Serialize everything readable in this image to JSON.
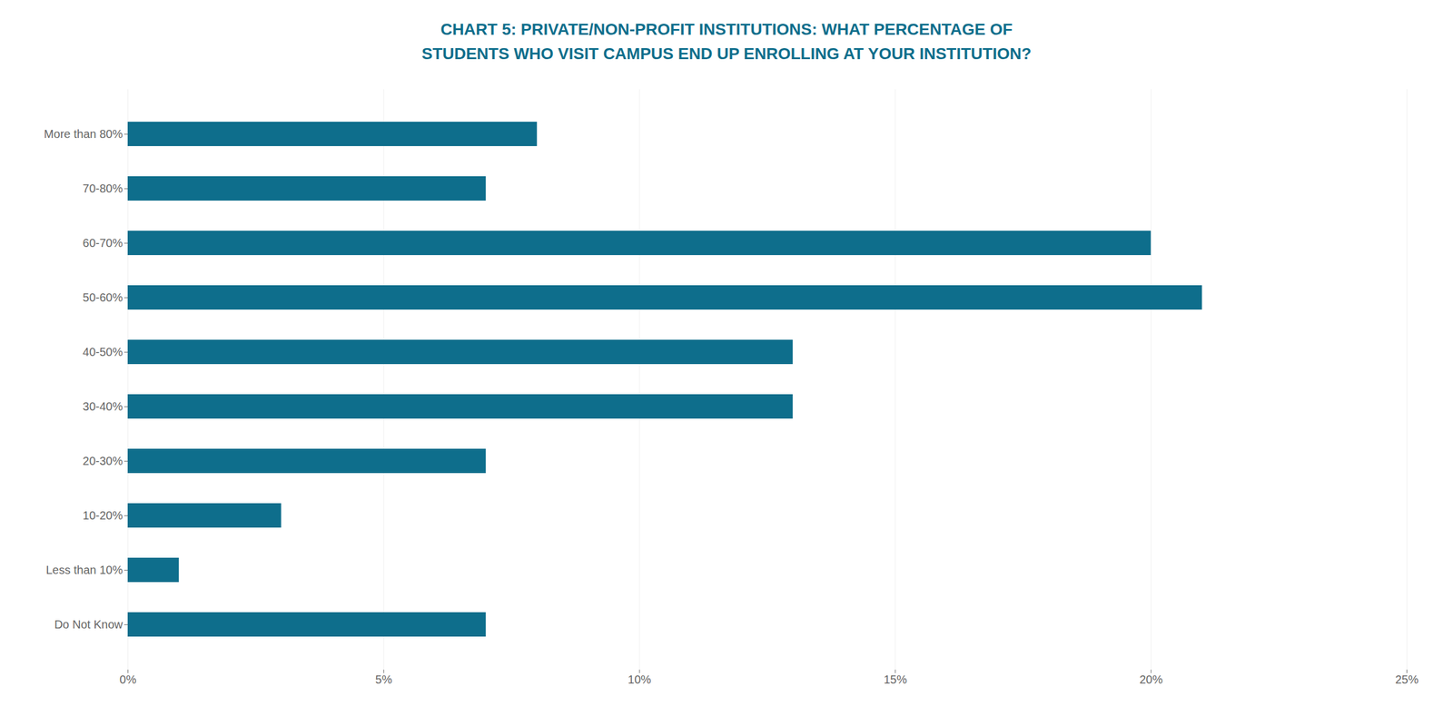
{
  "chart_data": {
    "type": "bar",
    "orientation": "horizontal",
    "title": "CHART 5: PRIVATE/NON-PROFIT INSTITUTIONS: WHAT PERCENTAGE OF\nSTUDENTS WHO VISIT CAMPUS END UP ENROLLING AT YOUR INSTITUTION?",
    "categories": [
      "More than 80%",
      "70-80%",
      "60-70%",
      "50-60%",
      "40-50%",
      "30-40%",
      "20-30%",
      "10-20%",
      "Less than 10%",
      "Do Not Know"
    ],
    "values": [
      8,
      7,
      20,
      21,
      13,
      13,
      7,
      3,
      1,
      7
    ],
    "color": "#0e6e8c",
    "xlim": [
      0,
      25
    ],
    "xticks": [
      {
        "value": 0,
        "label": "0%"
      },
      {
        "value": 5,
        "label": "5%"
      },
      {
        "value": 10,
        "label": "10%"
      },
      {
        "value": 15,
        "label": "15%"
      },
      {
        "value": 20,
        "label": "20%"
      },
      {
        "value": 25,
        "label": "25%"
      }
    ],
    "grid": true
  }
}
